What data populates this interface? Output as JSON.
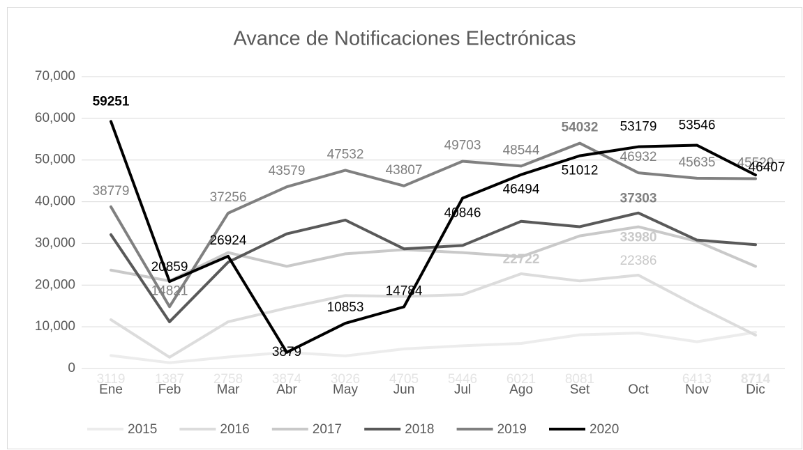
{
  "chart_data": {
    "type": "line",
    "title": "Avance de Notificaciones Electrónicas",
    "categories": [
      "Ene",
      "Feb",
      "Mar",
      "Abr",
      "May",
      "Jun",
      "Jul",
      "Ago",
      "Set",
      "Oct",
      "Nov",
      "Dic"
    ],
    "ylim": [
      0,
      70000
    ],
    "yticks": [
      0,
      {
        "value": 10000,
        "label": "10,000"
      },
      {
        "value": 20000,
        "label": "20,000"
      },
      {
        "value": 30000,
        "label": "30,000"
      },
      {
        "value": 40000,
        "label": "40,000"
      },
      {
        "value": 50000,
        "label": "50,000"
      },
      {
        "value": 60000,
        "label": "60,000"
      },
      {
        "value": 70000,
        "label": "70,000"
      }
    ],
    "grid": true,
    "legend": "bottom",
    "series": [
      {
        "name": "2015",
        "color": "#ececec",
        "values": [
          3119,
          1387,
          2758,
          3874,
          3026,
          4705,
          5446,
          6021,
          8081,
          8500,
          6413,
          8714
        ],
        "value_labels": [
          "3119",
          "1387",
          "2758",
          "3874",
          "3026",
          "4705",
          "5446",
          "6021",
          "8081",
          null,
          "6413",
          "8714"
        ]
      },
      {
        "name": "2016",
        "color": "#dcdcdc",
        "values": [
          11700,
          2700,
          11200,
          14500,
          17500,
          17300,
          17700,
          22722,
          21000,
          22386,
          15000,
          8000
        ],
        "value_labels": [
          null,
          null,
          null,
          null,
          null,
          null,
          null,
          "22722",
          null,
          "22386",
          null,
          null
        ]
      },
      {
        "name": "2017",
        "color": "#c9c9c9",
        "values": [
          23600,
          21000,
          27800,
          24500,
          27500,
          28500,
          27800,
          26800,
          31800,
          33980,
          30500,
          24500
        ],
        "value_labels": [
          null,
          null,
          null,
          null,
          null,
          null,
          null,
          null,
          null,
          "33980",
          null,
          null
        ]
      },
      {
        "name": "2018",
        "color": "#595959",
        "values": [
          32100,
          11200,
          25500,
          32300,
          35600,
          28700,
          29500,
          35300,
          34000,
          37303,
          30800,
          29700
        ],
        "value_labels": [
          null,
          null,
          null,
          null,
          null,
          null,
          null,
          null,
          null,
          "37303",
          null,
          null
        ]
      },
      {
        "name": "2019",
        "color": "#808080",
        "values": [
          38779,
          14821,
          37256,
          43579,
          47532,
          43807,
          49703,
          48544,
          54032,
          46932,
          45635,
          45529
        ],
        "value_labels": [
          "38779",
          "14821",
          "37256",
          "43579",
          "47532",
          "43807",
          "49703",
          "48544",
          "54032",
          "46932",
          "45635",
          "45529"
        ]
      },
      {
        "name": "2020",
        "color": "#000000",
        "values": [
          59251,
          20859,
          26924,
          3879,
          10853,
          14784,
          40846,
          46494,
          51012,
          53179,
          53546,
          46407
        ],
        "value_labels": [
          "59251",
          "20859",
          "26924",
          "3879",
          "10853",
          "14784",
          "40846",
          "46494",
          "51012",
          "53179",
          "53546",
          "46407"
        ]
      }
    ]
  }
}
